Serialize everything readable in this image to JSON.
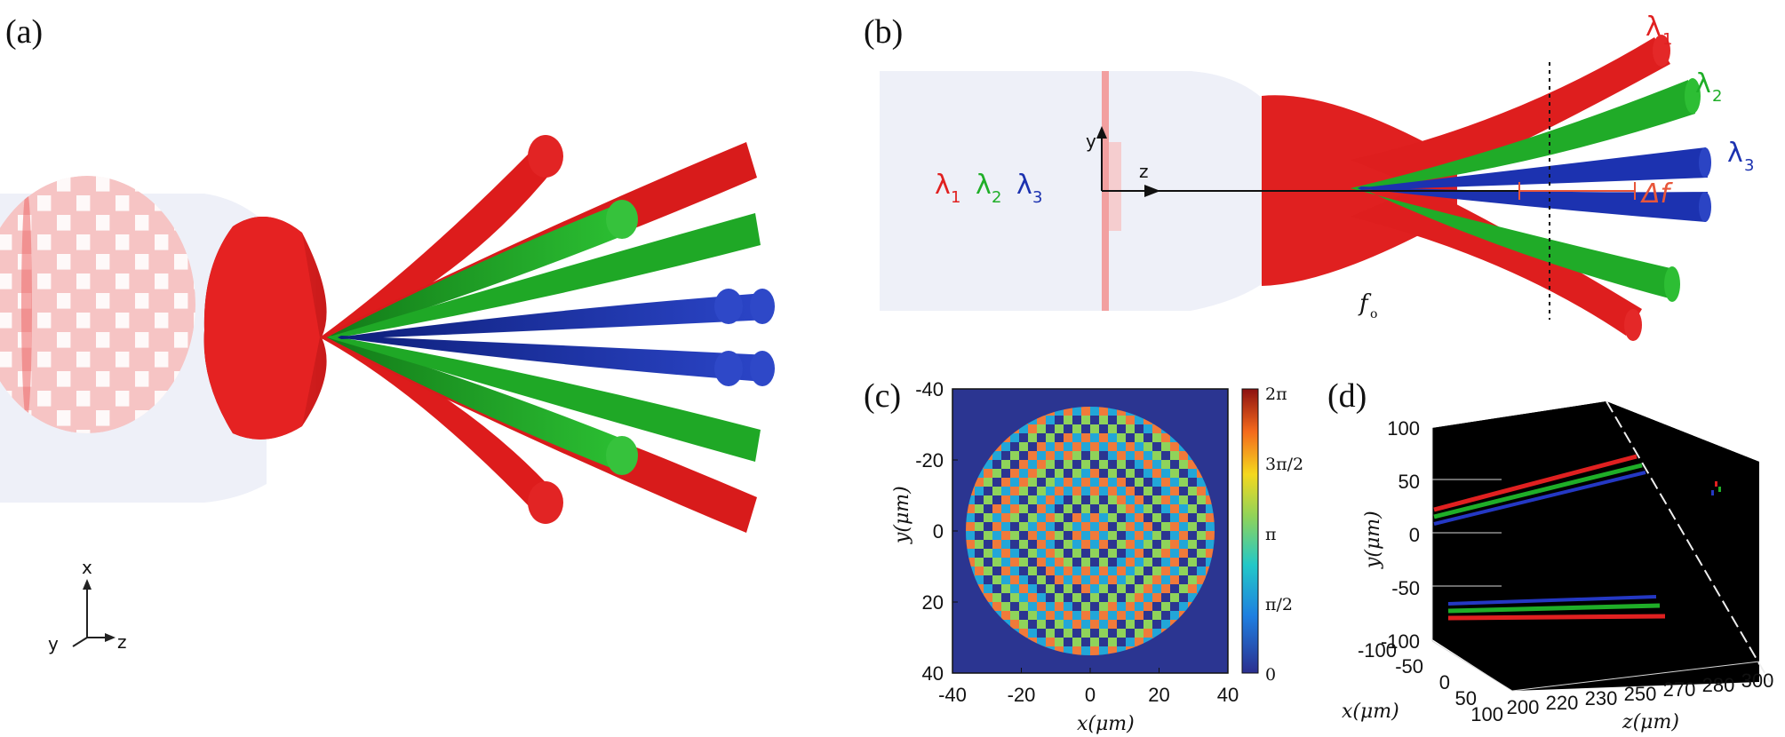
{
  "panels": {
    "a": {
      "label": "(a)",
      "axes": {
        "x": "x",
        "y": "y",
        "z": "z"
      },
      "colors": {
        "red": "#e01b1b",
        "green": "#1fae28",
        "blue": "#1c32b0",
        "metasurface": "#f2a5a5",
        "background": "#eef0f8"
      }
    },
    "b": {
      "label": "(b)",
      "axis_y": "y",
      "axis_z": "z",
      "lambda_right": [
        "λ",
        "1",
        "λ",
        "2",
        "λ",
        "3"
      ],
      "lambda_left": {
        "l1": "λ",
        "s1": "1",
        "l2": "λ",
        "s2": "2",
        "l3": "λ",
        "s3": "3"
      },
      "delta_f": "Δf",
      "focal": "f",
      "focal_sub": "o"
    },
    "c": {
      "label": "(c)",
      "x_label": "x(μm)",
      "y_label": "y(μm)",
      "x_ticks": [
        "-40",
        "-20",
        "0",
        "20",
        "40"
      ],
      "y_ticks": [
        "-40",
        "-20",
        "0",
        "20",
        "40"
      ],
      "colorbar_ticks": [
        "2π",
        "3π/2",
        "π",
        "π/2",
        "0"
      ]
    },
    "d": {
      "label": "(d)",
      "y_label": "y(μm)",
      "x_label": "x(μm)",
      "z_label": "z(μm)",
      "y_ticks": [
        "100",
        "50",
        "0",
        "-50",
        "-100"
      ],
      "x_ticks": [
        "-100",
        "-50",
        "0",
        "50",
        "100"
      ],
      "z_ticks": [
        "200",
        "220",
        "230",
        "250",
        "270",
        "280",
        "300"
      ]
    }
  },
  "chart_data": {
    "type": "heatmap",
    "xlabel": "x(μm)",
    "ylabel": "y(μm)",
    "xlim": [
      -40,
      40
    ],
    "ylim": [
      -40,
      40
    ],
    "colorbar_range": [
      0,
      6.283
    ],
    "colorbar_labels": [
      "0",
      "π/2",
      "π",
      "3π/2",
      "2π"
    ]
  }
}
